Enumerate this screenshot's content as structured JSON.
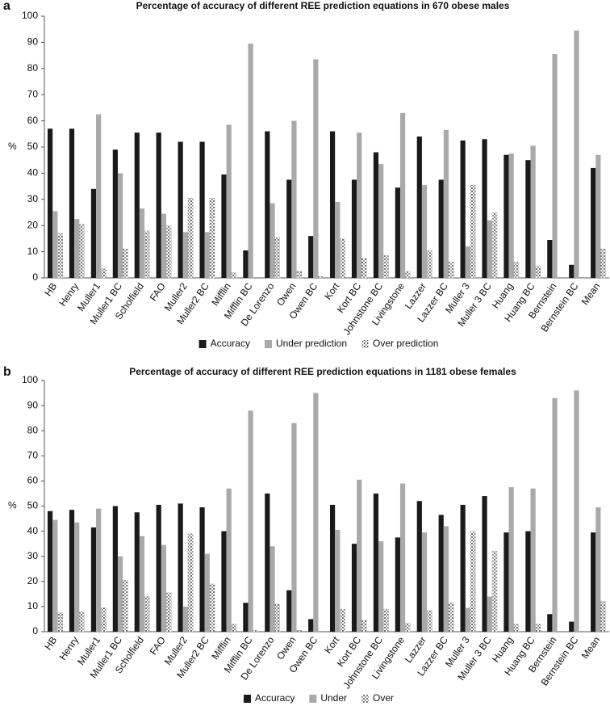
{
  "chart_data": [
    {
      "type": "bar",
      "panel": "a",
      "title": "Percentage of accuracy of different REE prediction equations in 670 obese males",
      "ylabel": "%",
      "categories": [
        "HB",
        "Henry",
        "Muller1",
        "Muller1 BC",
        "Scholfield",
        "FAO",
        "Muller2",
        "Muller2 BC",
        "Mifflin",
        "Mifflin BC",
        "De Lorenzo",
        "Owen",
        "Owen BC",
        "Kort",
        "Kort BC",
        "Johnstone BC",
        "Livingstone",
        "Lazzer",
        "Lazzer BC",
        "Muller 3",
        "Muller 3 BC",
        "Huang",
        "Huang BC",
        "Bernstein",
        "Bernstein BC",
        "Mean"
      ],
      "series": [
        {
          "name": "Accuracy",
          "color": "#1a1a1a",
          "values": [
            57,
            57,
            34,
            49,
            55.5,
            55.5,
            52,
            52,
            39.5,
            10.5,
            56,
            37.5,
            16,
            56,
            37.5,
            48,
            34.5,
            54,
            37.5,
            52.5,
            53,
            47,
            45,
            14.5,
            5,
            42
          ]
        },
        {
          "name": "Under prediction",
          "color": "#a9a9a9",
          "values": [
            25.5,
            22.5,
            62.5,
            40,
            26.5,
            24.5,
            17.5,
            17.5,
            58.5,
            89.5,
            28.5,
            60,
            83.5,
            29,
            55.5,
            43.5,
            63,
            35.5,
            56.5,
            12,
            22,
            47.5,
            50.5,
            85.5,
            94.5,
            47
          ]
        },
        {
          "name": "Over prediction",
          "color": "#ffffff",
          "pattern": "dots",
          "values": [
            17,
            20.5,
            3.5,
            11,
            18,
            20,
            30.5,
            30.5,
            2,
            0,
            15.5,
            2.5,
            0.5,
            15,
            7.5,
            8.5,
            2.5,
            10.5,
            6,
            35.5,
            25,
            6,
            4.5,
            0,
            0,
            11
          ]
        }
      ],
      "ylim": [
        0,
        100
      ],
      "yticks": [
        0,
        10,
        20,
        30,
        40,
        50,
        60,
        70,
        80,
        90,
        100
      ],
      "grid": false,
      "legend": "bottom"
    },
    {
      "type": "bar",
      "panel": "b",
      "title": "Percentage of accuracy of different REE prediction equations in 1181 obese females",
      "ylabel": "%",
      "categories": [
        "HB",
        "Henry",
        "Muller1",
        "Muller1 BC",
        "Scholfield",
        "FAO",
        "Muller2",
        "Muller2 BC",
        "Mifflin",
        "Mifflin BC",
        "De Lorenzo",
        "Owen",
        "Owen BC",
        "Kort",
        "Kort BC",
        "Johnstone BC",
        "Livingstone",
        "Lazzer",
        "Lazzer BC",
        "Muller 3",
        "Muller 3 BC",
        "Huang",
        "Huang BC",
        "Bernstein",
        "Bernstein BC",
        "Mean"
      ],
      "series": [
        {
          "name": "Accuracy",
          "color": "#1a1a1a",
          "values": [
            48,
            48.5,
            41.5,
            50,
            47.5,
            50.5,
            51,
            49.5,
            40,
            11.5,
            55,
            16.5,
            5,
            50.5,
            35,
            55,
            37.5,
            52,
            46.5,
            50.5,
            54,
            39.5,
            40,
            7,
            4,
            39.5
          ]
        },
        {
          "name": "Under",
          "color": "#a9a9a9",
          "values": [
            44.5,
            43.5,
            49,
            30,
            38,
            34.5,
            10,
            31,
            57,
            88,
            34,
            83,
            95,
            40.5,
            60.5,
            36,
            59,
            39.5,
            42,
            9.5,
            14,
            57.5,
            57,
            93,
            96,
            49.5
          ]
        },
        {
          "name": "Over",
          "color": "#ffffff",
          "pattern": "dots",
          "values": [
            7.5,
            8,
            9.5,
            20.5,
            14,
            15.5,
            39,
            19,
            3,
            0.5,
            11,
            0.5,
            0,
            9,
            4.5,
            9,
            3.5,
            8.5,
            11.5,
            40,
            32,
            3,
            3,
            0,
            0,
            12
          ]
        }
      ],
      "ylim": [
        0,
        100
      ],
      "yticks": [
        0,
        10,
        20,
        30,
        40,
        50,
        60,
        70,
        80,
        90,
        100
      ],
      "grid": false,
      "legend": "bottom"
    }
  ]
}
